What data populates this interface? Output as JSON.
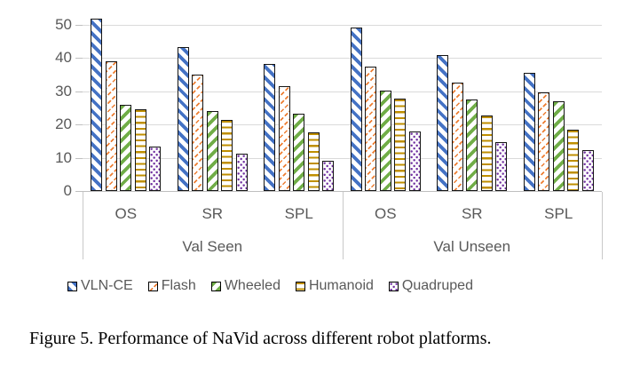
{
  "caption": "Figure 5. Performance of NaVid across different robot platforms.",
  "chart_data": {
    "type": "bar",
    "title": "",
    "xlabel": "",
    "ylabel": "",
    "y_axis": {
      "min": 0,
      "max": 50,
      "tick_step": 10,
      "ticks": [
        0,
        10,
        20,
        30,
        40,
        50
      ]
    },
    "grid": true,
    "legend_position": "bottom",
    "categories": [
      "OS",
      "SR",
      "SPL",
      "OS",
      "SR",
      "SPL"
    ],
    "category_groups": [
      {
        "label": "Val Seen",
        "span": 3
      },
      {
        "label": "Val Unseen",
        "span": 3
      }
    ],
    "series": [
      {
        "name": "VLN-CE",
        "color": "#4472C4",
        "pattern": "diagonal-down",
        "values": [
          52.0,
          43.3,
          38.2,
          49.2,
          41.0,
          35.6
        ]
      },
      {
        "name": "Flash",
        "color": "#ED7D31",
        "pattern": "diagonal-up-dashed",
        "values": [
          39.0,
          35.0,
          31.5,
          37.5,
          32.6,
          29.6
        ]
      },
      {
        "name": "Wheeled",
        "color": "#70AD47",
        "pattern": "diagonal-up",
        "values": [
          25.9,
          24.0,
          23.2,
          30.1,
          27.5,
          27.0
        ]
      },
      {
        "name": "Humanoid",
        "color": "#BF8F00",
        "pattern": "horizontal",
        "values": [
          24.6,
          21.5,
          17.6,
          27.7,
          22.8,
          18.5
        ]
      },
      {
        "name": "Quadruped",
        "color": "#7030A0",
        "pattern": "dotted",
        "values": [
          13.3,
          11.2,
          9.0,
          17.8,
          14.8,
          12.3
        ]
      }
    ]
  }
}
